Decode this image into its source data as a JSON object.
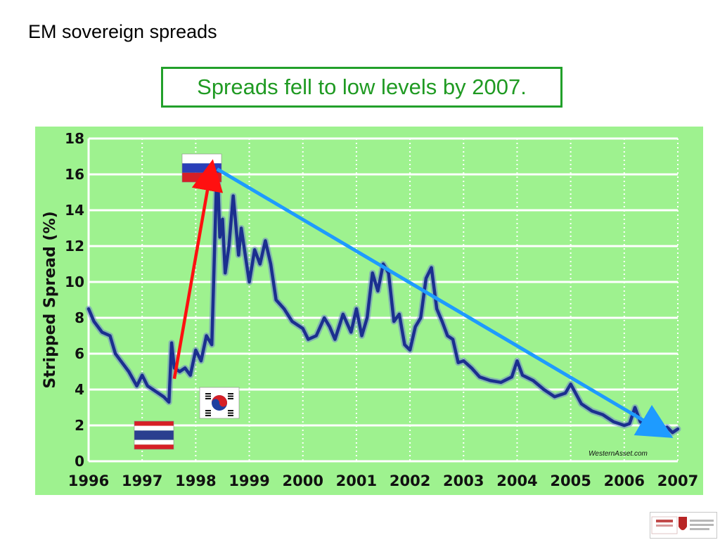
{
  "slide": {
    "title": "EM sovereign spreads",
    "callout": "Spreads fell to low levels by 2007."
  },
  "colors": {
    "plot_background": "#9ef28f",
    "series_line": "#1b2f8f",
    "grid": "#ffffff",
    "callout_border": "#22a02a",
    "callout_text": "#1f9a22",
    "rise_arrow": "#ff1010",
    "decline_arrow": "#1e9bff"
  },
  "chart_data": {
    "type": "line",
    "title": "",
    "xlabel": "",
    "ylabel": "Stripped Spread (%)",
    "ylim": [
      0,
      18
    ],
    "yticks": [
      0,
      2,
      4,
      6,
      8,
      10,
      12,
      14,
      16,
      18
    ],
    "xticks": [
      "1996",
      "1997",
      "1998",
      "1999",
      "2000",
      "2001",
      "2002",
      "2003",
      "2004",
      "2005",
      "2006",
      "2007"
    ],
    "xlim": [
      1996,
      2007
    ],
    "grid": true,
    "source_label": "WesternAsset.com",
    "series": [
      {
        "x": [
          1996.0,
          1996.1,
          1996.25,
          1996.4,
          1996.5,
          1996.6,
          1996.75,
          1996.9,
          1997.0,
          1997.1,
          1997.25,
          1997.4,
          1997.5,
          1997.55,
          1997.6,
          1997.7,
          1997.8,
          1997.9,
          1998.0,
          1998.1,
          1998.2,
          1998.3,
          1998.4,
          1998.45,
          1998.5,
          1998.55,
          1998.62,
          1998.7,
          1998.8,
          1998.85,
          1998.95,
          1999.0,
          1999.1,
          1999.2,
          1999.3,
          1999.4,
          1999.5,
          1999.65,
          1999.8,
          2000.0,
          2000.1,
          2000.25,
          2000.4,
          2000.5,
          2000.6,
          2000.75,
          2000.9,
          2001.0,
          2001.1,
          2001.2,
          2001.3,
          2001.4,
          2001.5,
          2001.6,
          2001.7,
          2001.8,
          2001.9,
          2002.0,
          2002.1,
          2002.2,
          2002.3,
          2002.4,
          2002.5,
          2002.6,
          2002.7,
          2002.8,
          2002.9,
          2003.0,
          2003.15,
          2003.3,
          2003.5,
          2003.7,
          2003.9,
          2004.0,
          2004.1,
          2004.3,
          2004.5,
          2004.7,
          2004.9,
          2005.0,
          2005.2,
          2005.4,
          2005.6,
          2005.8,
          2006.0,
          2006.1,
          2006.2,
          2006.3,
          2006.4,
          2006.5,
          2006.6,
          2006.7,
          2006.8,
          2006.9,
          2007.0
        ],
        "values": [
          8.5,
          7.8,
          7.2,
          7.0,
          6.0,
          5.6,
          5.0,
          4.2,
          4.8,
          4.2,
          3.9,
          3.6,
          3.3,
          6.6,
          5.2,
          5.0,
          5.2,
          4.8,
          6.2,
          5.6,
          7.0,
          6.5,
          16.8,
          12.5,
          13.5,
          10.5,
          12.0,
          14.8,
          11.5,
          13.0,
          11.0,
          10.0,
          11.8,
          11.0,
          12.3,
          11.0,
          9.0,
          8.5,
          7.8,
          7.4,
          6.8,
          7.0,
          8.0,
          7.5,
          6.8,
          8.2,
          7.2,
          8.5,
          7.0,
          8.0,
          10.5,
          9.5,
          11.0,
          10.5,
          7.8,
          8.2,
          6.5,
          6.2,
          7.5,
          8.0,
          10.2,
          10.8,
          8.5,
          7.8,
          7.0,
          6.8,
          5.5,
          5.6,
          5.2,
          4.7,
          4.5,
          4.4,
          4.7,
          5.6,
          4.8,
          4.5,
          4.0,
          3.6,
          3.8,
          4.3,
          3.2,
          2.8,
          2.6,
          2.2,
          2.0,
          2.1,
          3.0,
          2.2,
          2.0,
          2.1,
          1.8,
          1.7,
          1.9,
          1.6,
          1.8
        ]
      }
    ],
    "annotations": [
      {
        "type": "arrow",
        "color_key": "rise_arrow",
        "from": [
          1997.6,
          4.6
        ],
        "to": [
          1998.3,
          16.5
        ]
      },
      {
        "type": "arrow",
        "color_key": "decline_arrow",
        "from": [
          1998.4,
          16.3
        ],
        "to": [
          2006.8,
          1.5
        ]
      },
      {
        "type": "flag",
        "name": "russia-flag",
        "anchor": [
          1997.9,
          17.0
        ]
      },
      {
        "type": "flag",
        "name": "thailand-flag",
        "anchor": [
          1996.9,
          2.0
        ]
      },
      {
        "type": "flag",
        "name": "south-korea-flag",
        "anchor": [
          1998.15,
          3.9
        ]
      }
    ]
  }
}
